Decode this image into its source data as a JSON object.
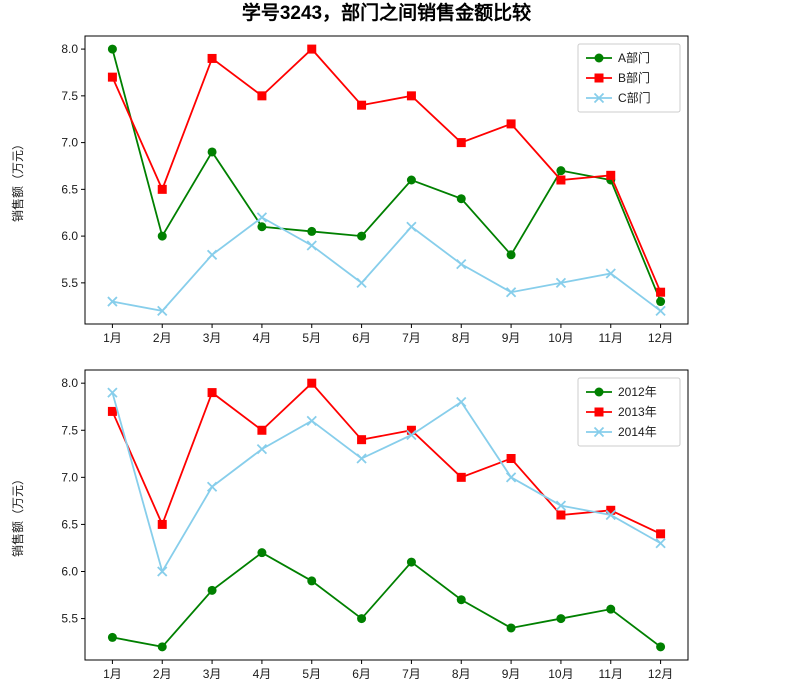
{
  "page_title": "学号3243，部门之间销售金额比较",
  "chart_data": [
    {
      "type": "line",
      "title": "学号3243，部门之间销售金额比较",
      "categories": [
        "1月",
        "2月",
        "3月",
        "4月",
        "5月",
        "6月",
        "7月",
        "8月",
        "9月",
        "10月",
        "11月",
        "12月"
      ],
      "xlabel": "",
      "ylabel": "销售额（万元）",
      "ylim": [
        5.06,
        8.14
      ],
      "yticks": [
        5.5,
        6.0,
        6.5,
        7.0,
        7.5,
        8.0
      ],
      "grid": false,
      "legend_position": "upper right",
      "series": [
        {
          "name": "A部门",
          "color": "#008000",
          "marker": "circle",
          "values": [
            8.0,
            6.0,
            6.9,
            6.1,
            6.05,
            6.0,
            6.6,
            6.4,
            5.8,
            6.7,
            6.6,
            5.3
          ]
        },
        {
          "name": "B部门",
          "color": "#ff0000",
          "marker": "square",
          "values": [
            7.7,
            6.5,
            7.9,
            7.5,
            8.0,
            7.4,
            7.5,
            7.0,
            7.2,
            6.6,
            6.65,
            5.4
          ]
        },
        {
          "name": "C部门",
          "color": "#87ceeb",
          "marker": "x",
          "values": [
            5.3,
            5.2,
            5.8,
            6.2,
            5.9,
            5.5,
            6.1,
            5.7,
            5.4,
            5.5,
            5.6,
            5.2
          ]
        }
      ]
    },
    {
      "type": "line",
      "title": "",
      "categories": [
        "1月",
        "2月",
        "3月",
        "4月",
        "5月",
        "6月",
        "7月",
        "8月",
        "9月",
        "10月",
        "11月",
        "12月"
      ],
      "xlabel": "",
      "ylabel": "销售额（万元）",
      "ylim": [
        5.06,
        8.14
      ],
      "yticks": [
        5.5,
        6.0,
        6.5,
        7.0,
        7.5,
        8.0
      ],
      "grid": false,
      "legend_position": "upper right",
      "series": [
        {
          "name": "2012年",
          "color": "#008000",
          "marker": "circle",
          "values": [
            5.3,
            5.2,
            5.8,
            6.2,
            5.9,
            5.5,
            6.1,
            5.7,
            5.4,
            5.5,
            5.6,
            5.2
          ]
        },
        {
          "name": "2013年",
          "color": "#ff0000",
          "marker": "square",
          "values": [
            7.7,
            6.5,
            7.9,
            7.5,
            8.0,
            7.4,
            7.5,
            7.0,
            7.2,
            6.6,
            6.65,
            6.4
          ]
        },
        {
          "name": "2014年",
          "color": "#87ceeb",
          "marker": "x",
          "values": [
            7.9,
            6.0,
            6.9,
            7.3,
            7.6,
            7.2,
            7.45,
            7.8,
            7.0,
            6.7,
            6.6,
            6.3
          ]
        }
      ]
    }
  ]
}
